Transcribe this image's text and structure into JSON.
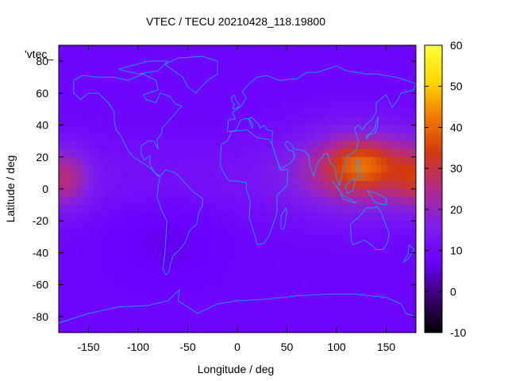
{
  "chart_data": {
    "type": "heatmap",
    "title": "VTEC / TECU 20210428_118.19800",
    "xlabel": "Longitude / deg",
    "ylabel": "Latitude / deg",
    "xlim": [
      -180,
      180
    ],
    "ylim": [
      -90,
      90
    ],
    "x_ticks": [
      -150,
      -100,
      -50,
      0,
      50,
      100,
      150
    ],
    "y_ticks": [
      -80,
      -60,
      -40,
      -20,
      0,
      20,
      40,
      60,
      80
    ],
    "colorbar": {
      "range": [
        -10,
        60
      ],
      "ticks": [
        -10,
        0,
        10,
        20,
        30,
        40,
        50,
        60
      ],
      "colormap": "gnuplot-rgbformulae-7-5-15",
      "stops": [
        "#000000",
        "#3a0070",
        "#6a00ff",
        "#7f20e8",
        "#b22a88",
        "#d33a12",
        "#f07a00",
        "#ffd800",
        "#ffff3a"
      ]
    },
    "legend_key": "'vtec_",
    "grid": false,
    "overlay": "coastlines",
    "overlay_color": "#1ea0ff",
    "features": [
      {
        "name": "background",
        "lon": [
          -180,
          180
        ],
        "lat": [
          -90,
          90
        ],
        "value": 9
      },
      {
        "name": "equatorial band",
        "lon": [
          -180,
          180
        ],
        "lat": [
          -20,
          25
        ],
        "value": 12
      },
      {
        "name": "Asian crest",
        "lon": [
          60,
          180
        ],
        "lat": [
          -15,
          30
        ],
        "value": 28
      },
      {
        "name": "peak",
        "lon": 125,
        "lat": 15,
        "value": 42
      },
      {
        "name": "dateline crest",
        "lon": [
          -180,
          -150
        ],
        "lat": [
          -10,
          25
        ],
        "value": 26
      }
    ]
  }
}
